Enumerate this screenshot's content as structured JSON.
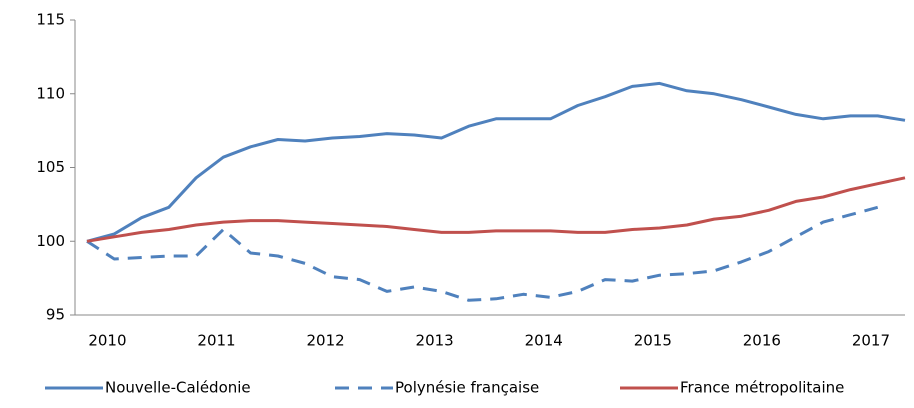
{
  "chart_data": {
    "type": "line",
    "categories": [
      null,
      "2010",
      null,
      null,
      null,
      "2011",
      null,
      null,
      null,
      "2012",
      null,
      null,
      null,
      "2013",
      null,
      null,
      null,
      "2014",
      null,
      null,
      null,
      "2015",
      null,
      null,
      null,
      "2016",
      null,
      null,
      null,
      "2017",
      null
    ],
    "series": [
      {
        "name": "Nouvelle-Calédonie",
        "color": "#4f81bd",
        "dash": false,
        "values": [
          100,
          100.5,
          101.6,
          102.3,
          104.3,
          105.7,
          106.4,
          106.9,
          106.8,
          107.0,
          107.1,
          107.3,
          107.2,
          107.0,
          107.8,
          108.3,
          108.3,
          108.3,
          109.2,
          109.8,
          110.5,
          110.7,
          110.2,
          110.0,
          109.6,
          109.1,
          108.6,
          108.3,
          108.5,
          108.5,
          108.2
        ]
      },
      {
        "name": "Polynésie française",
        "color": "#4f81bd",
        "dash": true,
        "values": [
          100,
          98.8,
          98.9,
          99.0,
          99.0,
          100.8,
          99.2,
          99.0,
          98.5,
          97.6,
          97.4,
          96.6,
          96.9,
          96.6,
          96.0,
          96.1,
          96.4,
          96.2,
          96.6,
          97.4,
          97.3,
          97.7,
          97.8,
          98.0,
          98.6,
          99.3,
          100.3,
          101.3,
          101.8,
          102.3,
          null
        ]
      },
      {
        "name": "France métropolitaine",
        "color": "#c0504d",
        "dash": false,
        "values": [
          100,
          100.3,
          100.6,
          100.8,
          101.1,
          101.3,
          101.4,
          101.4,
          101.3,
          101.2,
          101.1,
          101.0,
          100.8,
          100.6,
          100.6,
          100.7,
          100.7,
          100.7,
          100.6,
          100.6,
          100.8,
          100.9,
          101.1,
          101.5,
          101.7,
          102.1,
          102.7,
          103.0,
          103.5,
          103.9,
          104.3
        ]
      }
    ],
    "ylim": [
      95,
      115
    ],
    "yticks": [
      95,
      100,
      105,
      110,
      115
    ],
    "grid": false,
    "legend": "bottom"
  }
}
